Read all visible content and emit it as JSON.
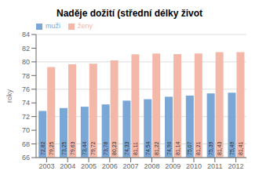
{
  "chart_data": {
    "type": "bar",
    "title": "Naděje dožití (střední délky život",
    "categories": [
      "2003",
      "2004",
      "2005",
      "2006",
      "2007",
      "2008",
      "2009",
      "2010",
      "2011",
      "2012"
    ],
    "series": [
      {
        "name": "muži",
        "color": "#7BA7D6",
        "values": [
          72.82,
          73.25,
          73.44,
          73.78,
          74.33,
          74.54,
          74.9,
          75.07,
          75.39,
          75.49
        ],
        "value_labels": [
          "72,82",
          "73,25",
          "73,44",
          "73,78",
          "74,33",
          "74,54",
          "74,90",
          "75,07",
          "75,39",
          "75,49"
        ]
      },
      {
        "name": "ženy",
        "color": "#F4B8A8",
        "values": [
          79.25,
          79.63,
          79.72,
          80.23,
          81.11,
          81.22,
          81.14,
          81.21,
          81.43,
          81.41
        ],
        "value_labels": [
          "79,25",
          "79,63",
          "79,72",
          "80,23",
          "81,11",
          "81,22",
          "81,14",
          "81,21",
          "81,43",
          "81,41"
        ]
      }
    ],
    "ylim": [
      66,
      84
    ],
    "yticks": [
      66,
      68,
      70,
      72,
      74,
      76,
      78,
      80,
      82,
      84
    ],
    "ylabel": "roky",
    "grid": true,
    "legend": "upper left",
    "data_labels": true
  }
}
